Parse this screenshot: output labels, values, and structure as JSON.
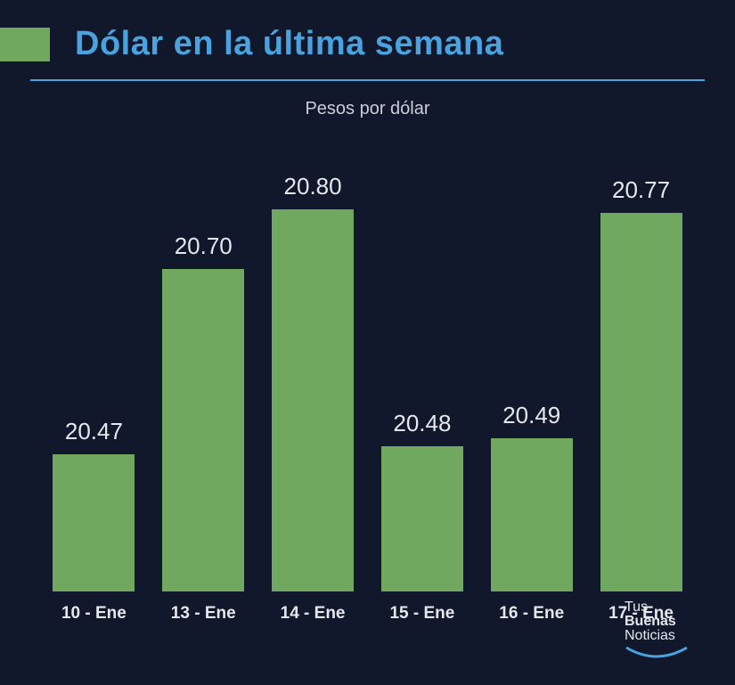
{
  "title": "Dólar en la última semana",
  "subtitle": "Pesos por dólar",
  "colors": {
    "background": "#11182b",
    "title": "#4aa3df",
    "rule": "#4aa3df",
    "subtitle": "#c9ced8",
    "accent_block": "#6fa85e",
    "bar": "#6fa85e",
    "value_label": "#e4e7ec",
    "x_label": "#e4e7ec",
    "logo_text": "#e4e7ec",
    "logo_arc": "#4aa3df"
  },
  "typography": {
    "title_fontsize": 38,
    "subtitle_fontsize": 20,
    "value_fontsize": 26,
    "xlabel_fontsize": 19,
    "logo_fontsize": 16
  },
  "chart": {
    "type": "bar",
    "y_min": 20.3,
    "y_max": 20.82,
    "bar_width_ratio": 0.78,
    "categories": [
      "10 - Ene",
      "13 - Ene",
      "14 - Ene",
      "15 - Ene",
      "16 - Ene",
      "17 - Ene"
    ],
    "values": [
      20.47,
      20.7,
      20.8,
      20.48,
      20.49,
      20.77
    ],
    "value_labels": [
      "20.47",
      "20.70",
      "20.80",
      "20.48",
      "20.49",
      "20.77"
    ]
  },
  "logo": {
    "line1": "Tus",
    "line2": "Buenas",
    "line3": "Noticias"
  }
}
